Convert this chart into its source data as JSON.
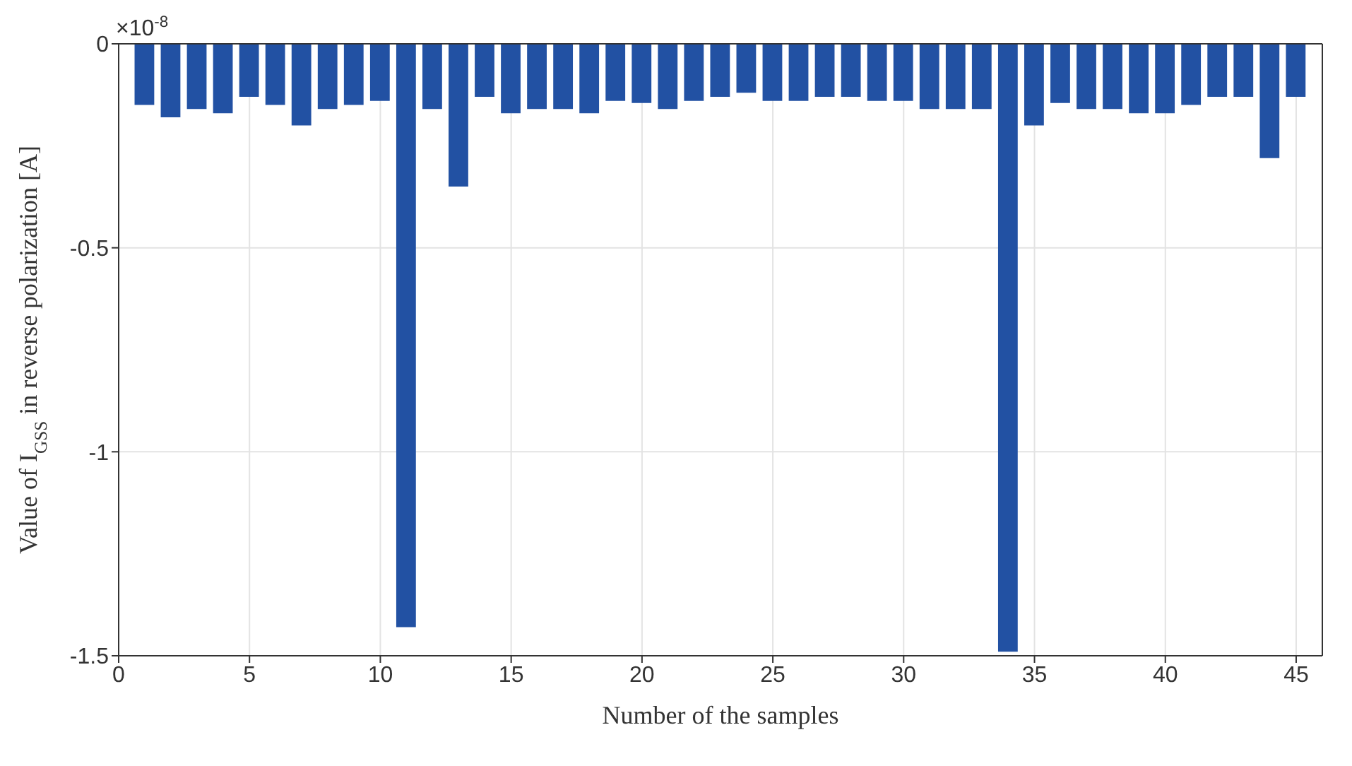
{
  "chart_data": {
    "type": "bar",
    "xlabel": "Number of the samples",
    "ylabel": "Value of I$_{GSS}$ in reverse polarization [A]",
    "annotations": [
      "×10$^{-8}$"
    ],
    "x": [
      1,
      2,
      3,
      4,
      5,
      6,
      7,
      8,
      9,
      10,
      11,
      12,
      13,
      14,
      15,
      16,
      17,
      18,
      19,
      20,
      21,
      22,
      23,
      24,
      25,
      26,
      27,
      28,
      29,
      30,
      31,
      32,
      33,
      34,
      35,
      36,
      37,
      38,
      39,
      40,
      41,
      42,
      43,
      44,
      45
    ],
    "values": [
      -0.15,
      -0.18,
      -0.16,
      -0.17,
      -0.13,
      -0.15,
      -0.2,
      -0.16,
      -0.15,
      -0.14,
      -1.43,
      -0.16,
      -0.35,
      -0.13,
      -0.17,
      -0.16,
      -0.16,
      -0.17,
      -0.14,
      -0.145,
      -0.16,
      -0.14,
      -0.13,
      -0.12,
      -0.14,
      -0.14,
      -0.13,
      -0.13,
      -0.14,
      -0.14,
      -0.16,
      -0.16,
      -0.16,
      -1.49,
      -0.2,
      -0.145,
      -0.16,
      -0.16,
      -0.17,
      -0.17,
      -0.15,
      -0.13,
      -0.13,
      -0.28,
      -0.13
    ],
    "color": "#2251a3",
    "xlim": [
      0,
      46
    ],
    "xticks": [
      0,
      5,
      10,
      15,
      20,
      25,
      30,
      35,
      40,
      45
    ],
    "ylim": [
      -1.5,
      0
    ],
    "yticks": [
      0,
      -0.5,
      -1,
      -1.5
    ],
    "grid": true
  }
}
